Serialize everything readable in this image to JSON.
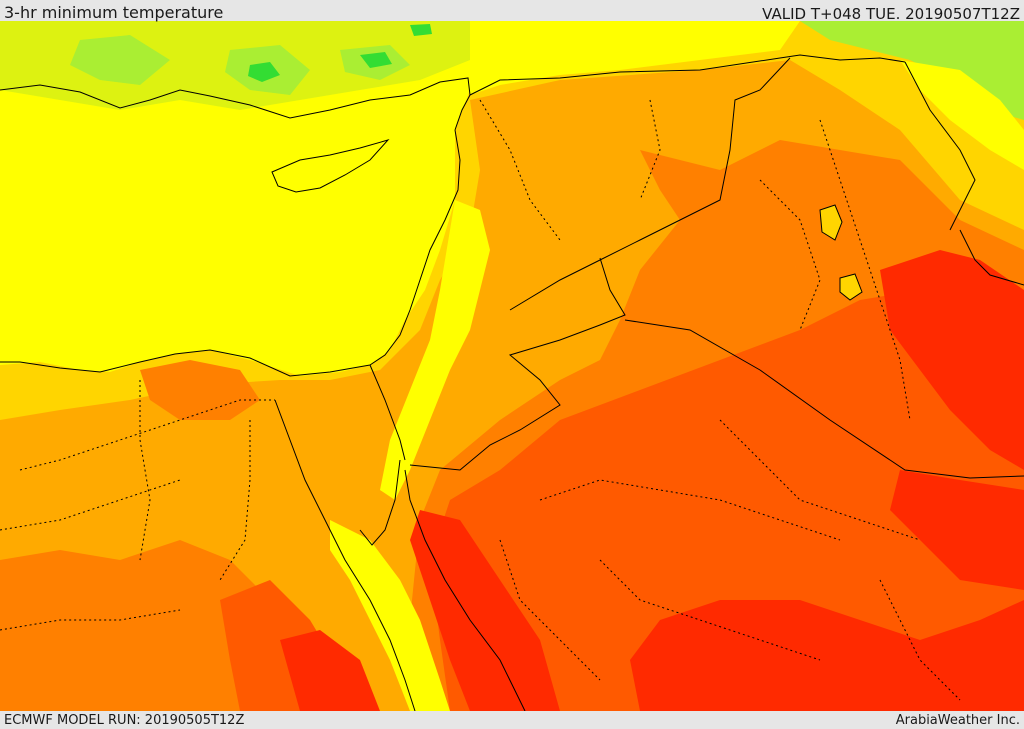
{
  "header": {
    "title": "3-hr minimum temperature",
    "valid_time": "VALID T+048 TUE. 20190507T12Z"
  },
  "footer": {
    "model_run": "ECMWF MODEL RUN: 20190505T12Z",
    "credit": "ArabiaWeather Inc."
  },
  "map": {
    "variable": "3-hr minimum temperature",
    "colors": {
      "green": "#33dd33",
      "light_green": "#aaee33",
      "yellow_green": "#ddf211",
      "yellow": "#ffff00",
      "gold": "#ffd500",
      "amber": "#ffaa00",
      "orange": "#ff8000",
      "dark_orange": "#ff5a00",
      "red": "#ff2a00",
      "border_line": "#000000"
    }
  }
}
